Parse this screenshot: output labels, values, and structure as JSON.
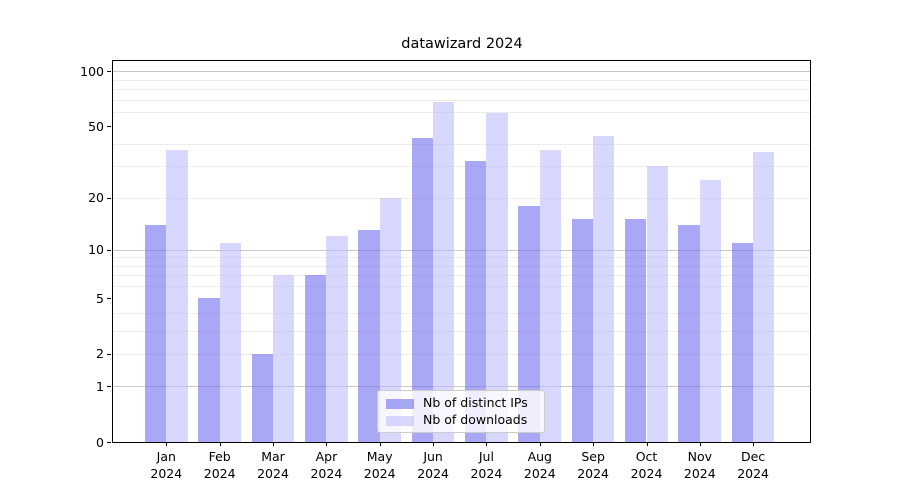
{
  "title": "datawizard 2024",
  "chart_data": {
    "type": "bar",
    "title": "datawizard 2024",
    "year": "2024",
    "months": [
      "Jan",
      "Feb",
      "Mar",
      "Apr",
      "May",
      "Jun",
      "Jul",
      "Aug",
      "Sep",
      "Oct",
      "Nov",
      "Dec"
    ],
    "categories": [
      "Jan 2024",
      "Feb 2024",
      "Mar 2024",
      "Apr 2024",
      "May 2024",
      "Jun 2024",
      "Jul 2024",
      "Aug 2024",
      "Sep 2024",
      "Oct 2024",
      "Nov 2024",
      "Dec 2024"
    ],
    "series": [
      {
        "name": "Nb of distinct IPs",
        "color": "#6666ee",
        "alpha": 0.57,
        "rendered_color": "#a8a8f8",
        "values": [
          14,
          5,
          2,
          7,
          13,
          43,
          32,
          18,
          15,
          15,
          14,
          11
        ]
      },
      {
        "name": "Nb of downloads",
        "color": "#bbbbff",
        "alpha": 0.57,
        "rendered_color": "#d9d9fb",
        "values": [
          37,
          11,
          7,
          12,
          20,
          68,
          59,
          37,
          44,
          30,
          25,
          36
        ]
      }
    ],
    "yscale": "log1p",
    "ylim": [
      0,
      114
    ],
    "yticks": [
      0,
      1,
      2,
      5,
      10,
      20,
      50,
      100
    ],
    "grid_major": [
      1,
      10,
      100
    ],
    "grid_minor": [
      2,
      3,
      4,
      6,
      7,
      8,
      9,
      20,
      30,
      40,
      60,
      70,
      80,
      90
    ],
    "grid_major_color": "#c9c9c9",
    "grid_minor_color": "#ececec",
    "legend_position": "inside lower center",
    "xlabel": "",
    "ylabel": ""
  }
}
